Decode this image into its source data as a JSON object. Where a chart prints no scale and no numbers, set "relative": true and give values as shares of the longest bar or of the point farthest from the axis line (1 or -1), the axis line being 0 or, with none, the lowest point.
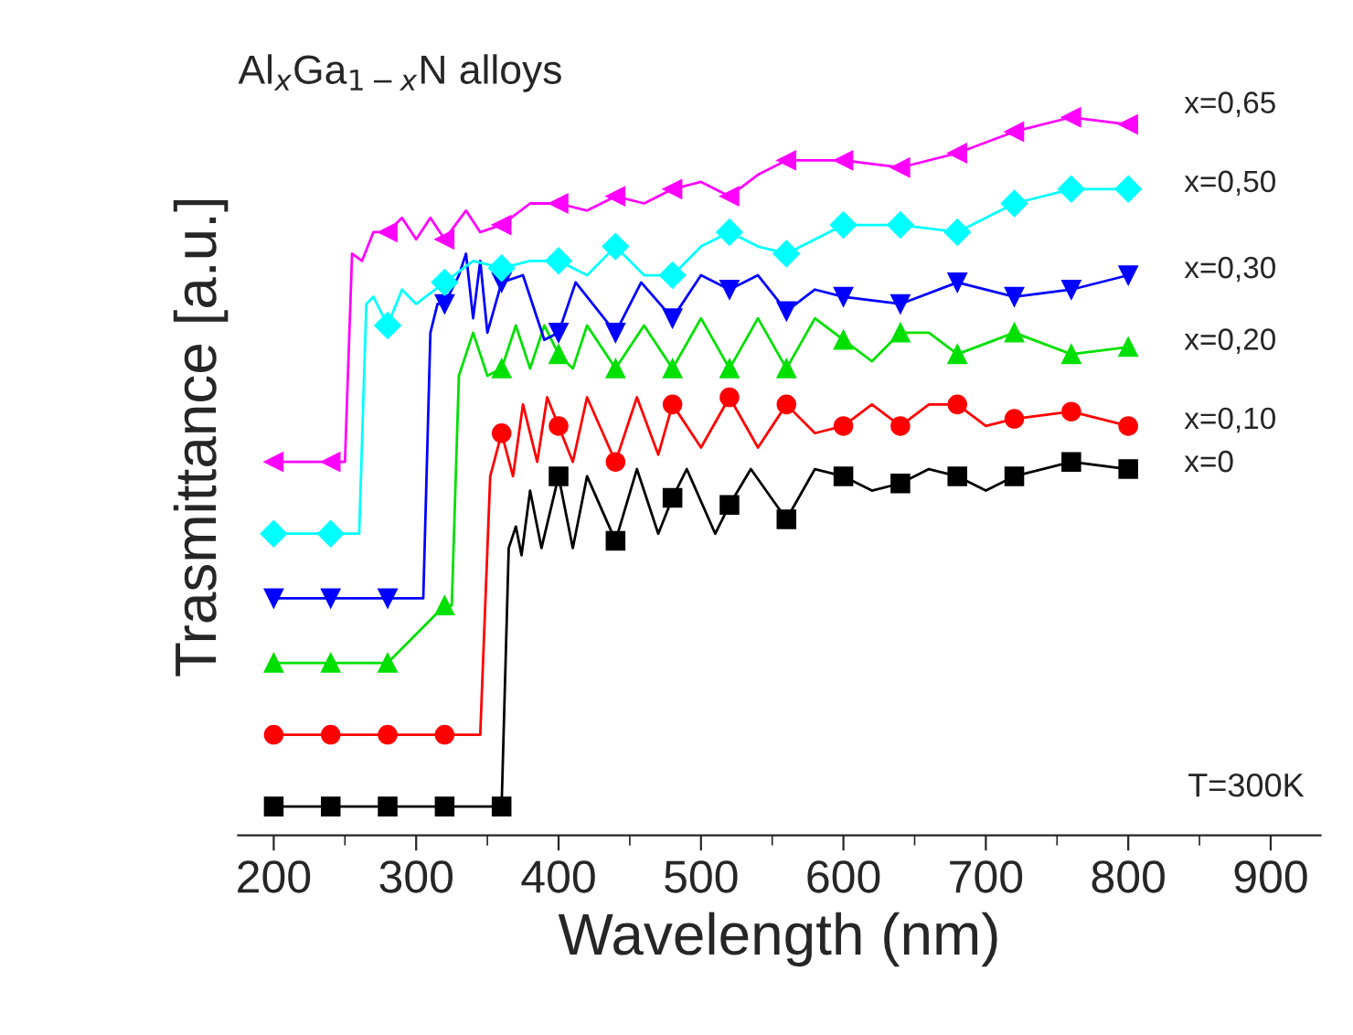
{
  "chart_data": {
    "type": "line",
    "relative": true,
    "title": "Al$_{x}$Ga$_{1−x}$N alloys",
    "xlabel": "Wavelength (nm)",
    "ylabel": "Trasmittance [a.u.]",
    "annotations": [
      "T=300K"
    ],
    "xlim": [
      175,
      935
    ],
    "xticks": [
      200,
      300,
      400,
      500,
      600,
      700,
      800,
      900
    ],
    "grid": false,
    "legend": false,
    "line_style": "solid",
    "series": [
      {
        "name": "x=0",
        "color": "#000000",
        "marker": "square",
        "x": [
          200,
          240,
          280,
          320,
          360,
          365,
          370,
          374,
          380,
          388,
          400,
          410,
          420,
          440,
          455,
          470,
          480,
          490,
          510,
          520,
          535,
          560,
          580,
          600,
          620,
          640,
          660,
          680,
          700,
          720,
          760,
          800
        ],
        "values": [
          0.04,
          0.04,
          0.04,
          0.04,
          0.04,
          0.4,
          0.43,
          0.39,
          0.48,
          0.4,
          0.5,
          0.4,
          0.5,
          0.41,
          0.51,
          0.42,
          0.47,
          0.51,
          0.42,
          0.46,
          0.51,
          0.44,
          0.51,
          0.5,
          0.48,
          0.49,
          0.51,
          0.5,
          0.48,
          0.5,
          0.52,
          0.51
        ]
      },
      {
        "name": "x=0,10",
        "color": "#ff0000",
        "marker": "circle",
        "x": [
          200,
          240,
          280,
          320,
          345,
          352,
          360,
          368,
          375,
          385,
          392,
          400,
          410,
          420,
          440,
          455,
          470,
          480,
          500,
          520,
          540,
          560,
          580,
          600,
          620,
          640,
          660,
          680,
          700,
          720,
          760,
          800
        ],
        "values": [
          0.14,
          0.14,
          0.14,
          0.14,
          0.14,
          0.5,
          0.56,
          0.5,
          0.6,
          0.52,
          0.61,
          0.57,
          0.52,
          0.61,
          0.52,
          0.61,
          0.53,
          0.6,
          0.54,
          0.61,
          0.54,
          0.6,
          0.56,
          0.57,
          0.6,
          0.57,
          0.6,
          0.6,
          0.57,
          0.58,
          0.59,
          0.57
        ]
      },
      {
        "name": "x=0,20",
        "color": "#00e000",
        "marker": "triangle",
        "x": [
          200,
          240,
          280,
          320,
          325,
          330,
          340,
          350,
          360,
          370,
          380,
          390,
          400,
          410,
          420,
          440,
          460,
          480,
          500,
          520,
          540,
          560,
          580,
          600,
          620,
          640,
          660,
          680,
          720,
          760,
          800
        ],
        "values": [
          0.24,
          0.24,
          0.24,
          0.32,
          0.32,
          0.64,
          0.7,
          0.64,
          0.65,
          0.71,
          0.65,
          0.71,
          0.67,
          0.65,
          0.71,
          0.65,
          0.71,
          0.65,
          0.72,
          0.65,
          0.72,
          0.65,
          0.72,
          0.69,
          0.66,
          0.7,
          0.7,
          0.67,
          0.7,
          0.67,
          0.68
        ]
      },
      {
        "name": "x=0,30",
        "color": "#0000ff",
        "marker": "triangle_down",
        "x": [
          200,
          240,
          280,
          305,
          310,
          315,
          320,
          330,
          335,
          340,
          345,
          350,
          360,
          375,
          390,
          400,
          412,
          440,
          458,
          480,
          500,
          520,
          540,
          560,
          580,
          600,
          640,
          680,
          720,
          760,
          800
        ],
        "values": [
          0.33,
          0.33,
          0.33,
          0.33,
          0.7,
          0.74,
          0.74,
          0.78,
          0.81,
          0.72,
          0.8,
          0.7,
          0.77,
          0.78,
          0.69,
          0.7,
          0.77,
          0.7,
          0.77,
          0.72,
          0.78,
          0.76,
          0.78,
          0.73,
          0.76,
          0.75,
          0.74,
          0.77,
          0.75,
          0.76,
          0.78
        ]
      },
      {
        "name": "x=0,50",
        "color": "#00ffff",
        "marker": "diamond",
        "x": [
          200,
          240,
          260,
          265,
          270,
          280,
          290,
          300,
          320,
          340,
          360,
          380,
          400,
          420,
          440,
          460,
          480,
          500,
          520,
          540,
          560,
          600,
          640,
          680,
          720,
          760,
          800
        ],
        "values": [
          0.42,
          0.42,
          0.42,
          0.74,
          0.75,
          0.71,
          0.76,
          0.74,
          0.77,
          0.8,
          0.79,
          0.8,
          0.8,
          0.78,
          0.82,
          0.78,
          0.78,
          0.82,
          0.84,
          0.82,
          0.81,
          0.85,
          0.85,
          0.84,
          0.88,
          0.9,
          0.9
        ]
      },
      {
        "name": "x=0,65",
        "color": "#ff00ff",
        "marker": "triangle_left",
        "x": [
          200,
          240,
          250,
          255,
          262,
          270,
          280,
          290,
          300,
          310,
          320,
          335,
          345,
          360,
          380,
          400,
          420,
          440,
          460,
          480,
          500,
          520,
          540,
          560,
          600,
          640,
          680,
          720,
          760,
          800
        ],
        "values": [
          0.52,
          0.52,
          0.52,
          0.81,
          0.8,
          0.84,
          0.84,
          0.86,
          0.83,
          0.86,
          0.83,
          0.87,
          0.84,
          0.85,
          0.88,
          0.88,
          0.87,
          0.89,
          0.88,
          0.9,
          0.91,
          0.89,
          0.92,
          0.94,
          0.94,
          0.93,
          0.95,
          0.98,
          1.0,
          0.99
        ]
      }
    ]
  }
}
